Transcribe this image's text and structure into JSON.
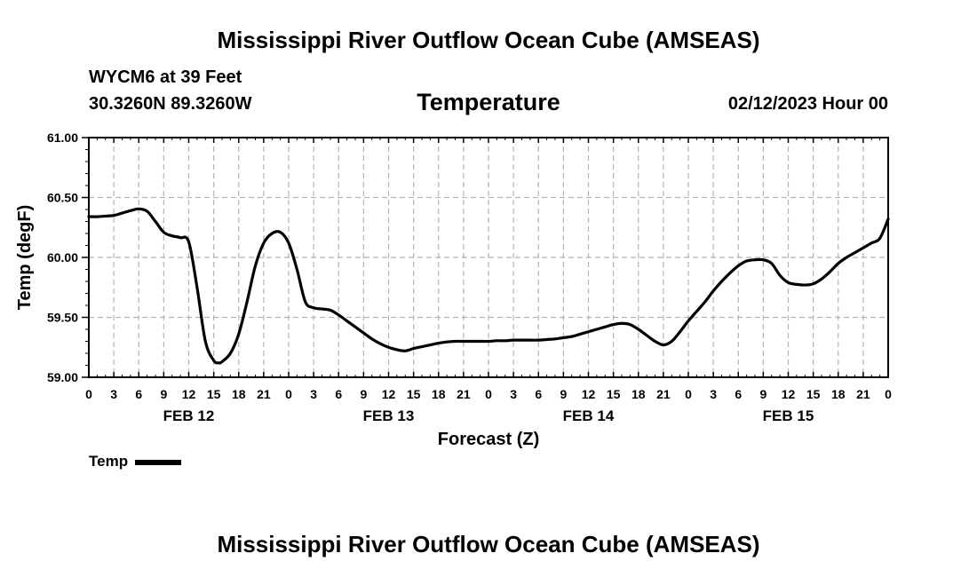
{
  "header": {
    "main_title": "Mississippi River Outflow Ocean Cube (AMSEAS)",
    "station": "WYCM6 at 39 Feet",
    "coords": "30.3260N  89.3260W",
    "datetime": "02/12/2023 Hour 00",
    "bottom_title": "Mississippi River Outflow Ocean Cube (AMSEAS)"
  },
  "chart_data": {
    "type": "line",
    "title": "Temperature",
    "xlabel": "Forecast (Z)",
    "ylabel": "Temp (degF)",
    "ylim": [
      59.0,
      61.0
    ],
    "xlim_hours": [
      0,
      96
    ],
    "y_ticks": [
      "59.00",
      "59.50",
      "60.00",
      "60.50",
      "61.00"
    ],
    "y_tick_values": [
      59.0,
      59.5,
      60.0,
      60.5,
      61.0
    ],
    "x_tick_labels": [
      "0",
      "3",
      "6",
      "9",
      "12",
      "15",
      "18",
      "21",
      "0",
      "3",
      "6",
      "9",
      "12",
      "15",
      "18",
      "21",
      "0",
      "3",
      "6",
      "9",
      "12",
      "15",
      "18",
      "21",
      "0",
      "3",
      "6",
      "9",
      "12",
      "15",
      "18",
      "21",
      "0"
    ],
    "day_labels": [
      {
        "label": "FEB 12",
        "hour": 12
      },
      {
        "label": "FEB 13",
        "hour": 36
      },
      {
        "label": "FEB 14",
        "hour": 60
      },
      {
        "label": "FEB 15",
        "hour": 84
      }
    ],
    "grid": true,
    "legend": "bottom-left",
    "series": [
      {
        "name": "Temp",
        "x": [
          0,
          1,
          2,
          3,
          4,
          5,
          6,
          7,
          8,
          9,
          10,
          11,
          12,
          13,
          14,
          15,
          15.6,
          16,
          17,
          18,
          19,
          20,
          21,
          22,
          23,
          24,
          25,
          26,
          27,
          28,
          29,
          30,
          31,
          32,
          33,
          34,
          35,
          36,
          37,
          38,
          39,
          40,
          41,
          42,
          43,
          44,
          45,
          46,
          47,
          48,
          49,
          50,
          51,
          52,
          53,
          54,
          55,
          56,
          57,
          58,
          59,
          60,
          61,
          62,
          63,
          64,
          65,
          66,
          67,
          68,
          69,
          70,
          71,
          72,
          73,
          74,
          75,
          76,
          77,
          78,
          79,
          80,
          81,
          82,
          83,
          84,
          85,
          86,
          87,
          88,
          89,
          90,
          91,
          92,
          93,
          94,
          95,
          96
        ],
        "values": [
          60.34,
          60.34,
          60.345,
          60.35,
          60.37,
          60.39,
          60.405,
          60.385,
          60.3,
          60.21,
          60.18,
          60.165,
          60.13,
          59.75,
          59.3,
          59.14,
          59.12,
          59.13,
          59.2,
          59.36,
          59.63,
          59.93,
          60.12,
          60.2,
          60.21,
          60.12,
          59.9,
          59.63,
          59.58,
          59.57,
          59.56,
          59.52,
          59.47,
          59.42,
          59.37,
          59.32,
          59.28,
          59.25,
          59.23,
          59.22,
          59.24,
          59.255,
          59.27,
          59.285,
          59.295,
          59.3,
          59.3,
          59.3,
          59.3,
          59.3,
          59.305,
          59.305,
          59.31,
          59.31,
          59.31,
          59.31,
          59.315,
          59.32,
          59.33,
          59.34,
          59.36,
          59.38,
          59.4,
          59.42,
          59.44,
          59.45,
          59.44,
          59.4,
          59.35,
          59.3,
          59.27,
          59.3,
          59.38,
          59.47,
          59.55,
          59.63,
          59.72,
          59.8,
          59.87,
          59.93,
          59.97,
          59.98,
          59.98,
          59.95,
          59.85,
          59.79,
          59.775,
          59.77,
          59.78,
          59.82,
          59.88,
          59.95,
          60.0,
          60.04,
          60.08,
          60.12,
          60.16,
          60.32
        ]
      }
    ]
  }
}
